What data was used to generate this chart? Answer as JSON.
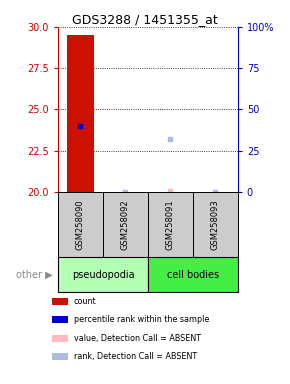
{
  "title": "GDS3288 / 1451355_at",
  "samples": [
    "GSM258090",
    "GSM258092",
    "GSM258091",
    "GSM258093"
  ],
  "groups": [
    "pseudopodia",
    "pseudopodia",
    "cell bodies",
    "cell bodies"
  ],
  "group_colors": {
    "pseudopodia": "#b3ffb3",
    "cell bodies": "#44ee44"
  },
  "ylim": [
    20,
    30
  ],
  "yticks_left": [
    20,
    22.5,
    25,
    27.5,
    30
  ],
  "yticks_right_labels": [
    "0",
    "25",
    "50",
    "75",
    "100%"
  ],
  "left_color": "#cc0000",
  "right_color": "#0000bb",
  "points": [
    {
      "sample": "GSM258090",
      "y": 29.5,
      "type": "count"
    },
    {
      "sample": "GSM258090",
      "y": 24.0,
      "type": "rank"
    },
    {
      "sample": "GSM258092",
      "y": 20.0,
      "type": "absent_rank"
    },
    {
      "sample": "GSM258091",
      "y": 20.05,
      "type": "absent_value"
    },
    {
      "sample": "GSM258091",
      "y": 23.2,
      "type": "absent_rank"
    },
    {
      "sample": "GSM258093",
      "y": 20.0,
      "type": "absent_rank"
    }
  ],
  "bar_color": "#cc1100",
  "rank_color": "#0000cc",
  "absent_value_color": "#ffbbbb",
  "absent_rank_color": "#aabbdd",
  "sample_box_color": "#cccccc",
  "legend_items": [
    {
      "color": "#cc1100",
      "label": "count"
    },
    {
      "color": "#0000cc",
      "label": "percentile rank within the sample"
    },
    {
      "color": "#ffbbbb",
      "label": "value, Detection Call = ABSENT"
    },
    {
      "color": "#aabbdd",
      "label": "rank, Detection Call = ABSENT"
    }
  ],
  "plot_bg": "#ffffff"
}
